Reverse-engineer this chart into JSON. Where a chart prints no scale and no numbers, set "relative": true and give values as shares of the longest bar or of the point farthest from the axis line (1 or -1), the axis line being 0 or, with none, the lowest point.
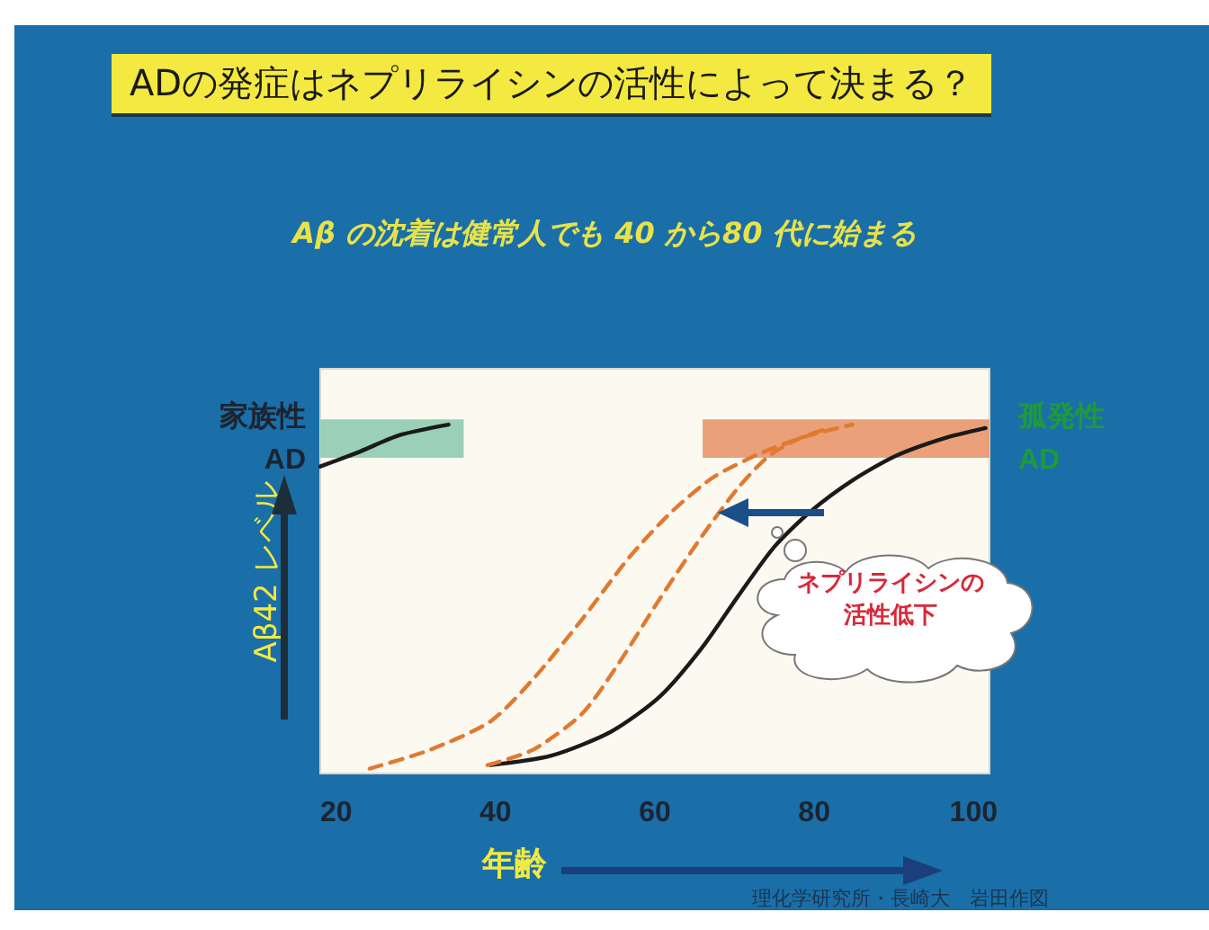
{
  "chart_data": {
    "type": "line",
    "title": "ADの発症はネプリライシンの活性によって決まる？",
    "subtitle": "Aβ の沈着は健常人でも 40 から80 代に始まる",
    "xlabel": "年齢",
    "ylabel": "Aβ42 レベル",
    "relative": true,
    "grid": false,
    "marker": "none",
    "xlim": [
      18,
      102
    ],
    "xticks": [
      20,
      40,
      60,
      80,
      100
    ],
    "series": [
      {
        "color": "#1a1a1a",
        "line_style": "solid",
        "x": [
          18,
          22.7,
          28,
          34.1
        ],
        "values": [
          0.88,
          0.92,
          0.97,
          1.0
        ]
      },
      {
        "color": "#1a1a1a",
        "line_style": "solid",
        "x": [
          39.4,
          47,
          54.5,
          60.6,
          65.9,
          70.5,
          75,
          79.5,
          84.8,
          90.2,
          96.2,
          101.5
        ],
        "values": [
          0.024,
          0.051,
          0.12,
          0.22,
          0.36,
          0.51,
          0.65,
          0.75,
          0.84,
          0.91,
          0.96,
          0.99
        ]
      },
      {
        "color": "#e07a30",
        "line_style": "dashed",
        "x": [
          24.2,
          31.8,
          39.4,
          44.7,
          50.8,
          56.8,
          62.1,
          67.4,
          73.5,
          79.5,
          84.8
        ],
        "values": [
          0.014,
          0.068,
          0.15,
          0.27,
          0.44,
          0.62,
          0.75,
          0.85,
          0.92,
          0.97,
          1.0
        ]
      },
      {
        "color": "#e07a30",
        "line_style": "dashed",
        "x": [
          39,
          44.7,
          50.8,
          55.3,
          60.6,
          65.9,
          70.5,
          74.3,
          78.1,
          81.8
        ],
        "values": [
          0.024,
          0.068,
          0.17,
          0.31,
          0.5,
          0.68,
          0.82,
          0.91,
          0.96,
          0.99
        ]
      }
    ],
    "bands": [
      {
        "axis": "x",
        "from": 18,
        "to": 36,
        "label": "家族性\nAD",
        "color": "#8fcbb0"
      },
      {
        "axis": "x",
        "from": 66,
        "to": 102,
        "label": "孤発性\nAD",
        "color": "#e8966a"
      }
    ],
    "annotations": [
      "ネプリライシンの活性低下",
      "理化学研究所・長崎大　岩田作図"
    ]
  }
}
